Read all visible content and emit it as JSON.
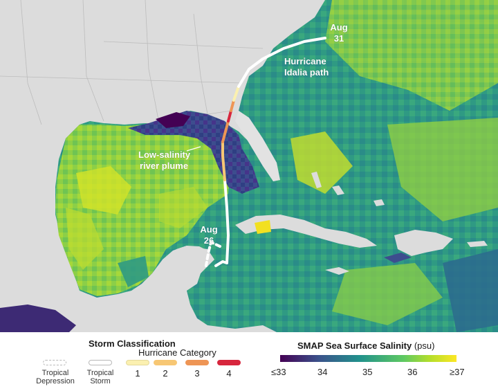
{
  "map": {
    "annotations": {
      "aug31_line1": "Aug",
      "aug31_line2": "31",
      "hurricane_line1": "Hurricane",
      "hurricane_line2": "Idalia path",
      "plume_line1": "Low-salinity",
      "plume_line2": "river plume",
      "aug26_line1": "Aug",
      "aug26_line2": "26"
    }
  },
  "legend": {
    "storm_title": "Storm Classification",
    "hurricane_category": "Hurricane Category",
    "classes": [
      {
        "label_line1": "Tropical",
        "label_line2": "Depression",
        "color": "#ffffff",
        "style": "dashed"
      },
      {
        "label_line1": "Tropical",
        "label_line2": "Storm",
        "color": "#ffffff",
        "style": "solid"
      },
      {
        "label_line1": "1",
        "color": "#fbf0b0"
      },
      {
        "label_line1": "2",
        "color": "#f7c774"
      },
      {
        "label_line1": "3",
        "color": "#ee9555"
      },
      {
        "label_line1": "4",
        "color": "#d7263d"
      }
    ],
    "salinity_title": "SMAP Sea Surface Salinity",
    "salinity_unit": "(psu)",
    "ticks": [
      "≤33",
      "34",
      "35",
      "36",
      "≥37"
    ]
  }
}
